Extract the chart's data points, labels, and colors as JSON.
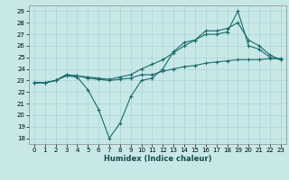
{
  "xlabel": "Humidex (Indice chaleur)",
  "xlim": [
    -0.5,
    23.5
  ],
  "ylim": [
    17.5,
    29.5
  ],
  "yticks": [
    18,
    19,
    20,
    21,
    22,
    23,
    24,
    25,
    26,
    27,
    28,
    29
  ],
  "xticks": [
    0,
    1,
    2,
    3,
    4,
    5,
    6,
    7,
    8,
    9,
    10,
    11,
    12,
    13,
    14,
    15,
    16,
    17,
    18,
    19,
    20,
    21,
    22,
    23
  ],
  "bg_color": "#c8e8e8",
  "line_color": "#1a6b6b",
  "grid_color": "#aad4d4",
  "line1_x": [
    0,
    1,
    2,
    3,
    4,
    5,
    6,
    7,
    8,
    9,
    10,
    11,
    12,
    13,
    14,
    15,
    16,
    17,
    18,
    19,
    20,
    21,
    22,
    23
  ],
  "line1_y": [
    22.8,
    22.8,
    23.0,
    23.4,
    23.3,
    22.2,
    20.5,
    18.0,
    19.3,
    21.6,
    23.0,
    23.2,
    24.0,
    25.5,
    26.3,
    26.5,
    27.0,
    27.0,
    27.2,
    29.0,
    26.0,
    25.7,
    25.0,
    24.8
  ],
  "line2_x": [
    0,
    1,
    2,
    3,
    4,
    5,
    6,
    7,
    8,
    9,
    10,
    11,
    12,
    13,
    14,
    15,
    16,
    17,
    18,
    19,
    20,
    21,
    22,
    23
  ],
  "line2_y": [
    22.8,
    22.8,
    23.0,
    23.5,
    23.4,
    23.2,
    23.1,
    23.0,
    23.1,
    23.2,
    23.5,
    23.5,
    23.8,
    24.0,
    24.2,
    24.3,
    24.5,
    24.6,
    24.7,
    24.8,
    24.8,
    24.8,
    24.9,
    24.9
  ],
  "line3_x": [
    0,
    1,
    2,
    3,
    4,
    5,
    6,
    7,
    8,
    9,
    10,
    11,
    12,
    13,
    14,
    15,
    16,
    17,
    18,
    19,
    20,
    21,
    22,
    23
  ],
  "line3_y": [
    22.8,
    22.8,
    23.0,
    23.5,
    23.4,
    23.3,
    23.2,
    23.1,
    23.3,
    23.5,
    24.0,
    24.4,
    24.8,
    25.4,
    26.0,
    26.5,
    27.3,
    27.3,
    27.5,
    28.0,
    26.5,
    26.0,
    25.2,
    24.8
  ]
}
